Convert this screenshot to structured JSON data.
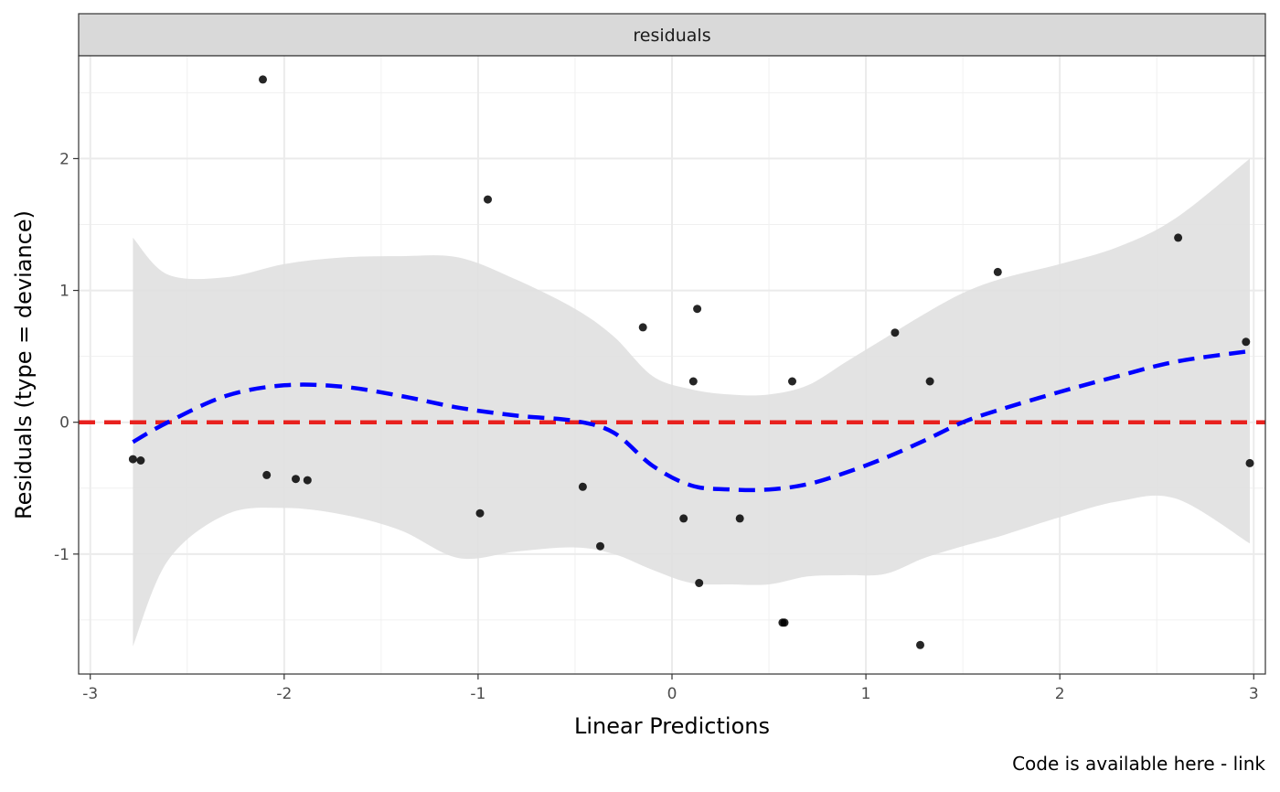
{
  "chart_data": {
    "type": "scatter",
    "facet_label": "residuals",
    "xlabel": "Linear Predictions",
    "ylabel": "Residuals (type = deviance)",
    "caption": "Code is available here - link",
    "xlim": [
      -3.06,
      3.06
    ],
    "ylim": [
      -1.91,
      2.78
    ],
    "xticks": [
      -3,
      -2,
      -1,
      0,
      1,
      2,
      3
    ],
    "xtick_labels": [
      "-3",
      "-2",
      "-1",
      "0",
      "1",
      "2",
      "3"
    ],
    "yticks": [
      -1,
      0,
      1,
      2
    ],
    "ytick_labels": [
      "-1",
      "0",
      "1",
      "2"
    ],
    "grid": true,
    "reference_line": {
      "y": 0,
      "color": "#e8211e",
      "style": "dashed"
    },
    "points": [
      {
        "x": -2.78,
        "y": -0.28
      },
      {
        "x": -2.74,
        "y": -0.29
      },
      {
        "x": -2.11,
        "y": 2.6
      },
      {
        "x": -2.09,
        "y": -0.4
      },
      {
        "x": -1.94,
        "y": -0.43
      },
      {
        "x": -1.88,
        "y": -0.44
      },
      {
        "x": -0.99,
        "y": -0.69
      },
      {
        "x": -0.95,
        "y": 1.69
      },
      {
        "x": -0.46,
        "y": -0.49
      },
      {
        "x": -0.37,
        "y": -0.94
      },
      {
        "x": -0.15,
        "y": 0.72
      },
      {
        "x": 0.06,
        "y": -0.73
      },
      {
        "x": 0.11,
        "y": 0.31
      },
      {
        "x": 0.13,
        "y": 0.86
      },
      {
        "x": 0.14,
        "y": -1.22
      },
      {
        "x": 0.35,
        "y": -0.73
      },
      {
        "x": 0.57,
        "y": -1.52
      },
      {
        "x": 0.58,
        "y": -1.52
      },
      {
        "x": 0.62,
        "y": 0.31
      },
      {
        "x": 1.15,
        "y": 0.68
      },
      {
        "x": 1.28,
        "y": -1.69
      },
      {
        "x": 1.33,
        "y": 0.31
      },
      {
        "x": 1.68,
        "y": 1.14
      },
      {
        "x": 2.61,
        "y": 1.4
      },
      {
        "x": 2.96,
        "y": 0.61
      },
      {
        "x": 2.98,
        "y": -0.31
      }
    ],
    "smooth": {
      "color": "#0000ff",
      "style": "dashed",
      "x": [
        -2.78,
        -2.6,
        -2.3,
        -2.0,
        -1.7,
        -1.4,
        -1.1,
        -0.8,
        -0.5,
        -0.3,
        -0.1,
        0.1,
        0.3,
        0.5,
        0.7,
        0.9,
        1.1,
        1.3,
        1.5,
        1.7,
        2.0,
        2.3,
        2.6,
        2.98
      ],
      "y": [
        -0.15,
        0.0,
        0.2,
        0.28,
        0.27,
        0.2,
        0.11,
        0.05,
        0.01,
        -0.08,
        -0.33,
        -0.48,
        -0.51,
        -0.51,
        -0.47,
        -0.38,
        -0.27,
        -0.14,
        0.0,
        0.1,
        0.23,
        0.35,
        0.46,
        0.54
      ],
      "upper": [
        1.4,
        1.12,
        1.1,
        1.2,
        1.25,
        1.26,
        1.25,
        1.08,
        0.86,
        0.65,
        0.35,
        0.25,
        0.21,
        0.21,
        0.28,
        0.46,
        0.64,
        0.82,
        0.98,
        1.09,
        1.2,
        1.33,
        1.55,
        2.0
      ],
      "lower": [
        -1.7,
        -1.05,
        -0.7,
        -0.65,
        -0.7,
        -0.82,
        -1.03,
        -0.98,
        -0.95,
        -1.0,
        -1.12,
        -1.22,
        -1.23,
        -1.23,
        -1.17,
        -1.16,
        -1.15,
        -1.03,
        -0.94,
        -0.86,
        -0.72,
        -0.6,
        -0.58,
        -0.92
      ],
      "band_color": "#e0e0e0"
    }
  }
}
